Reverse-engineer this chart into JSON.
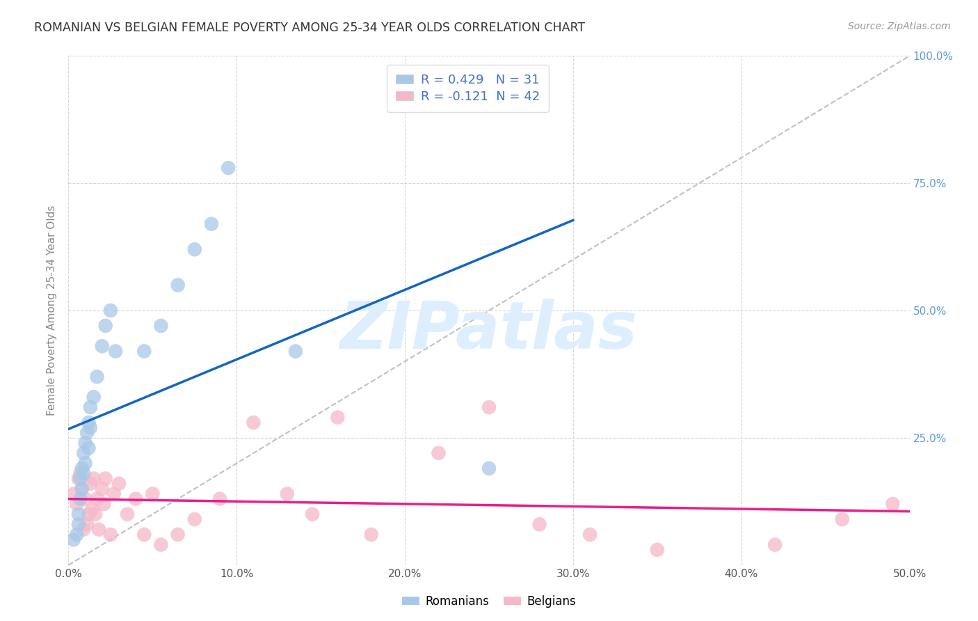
{
  "title": "ROMANIAN VS BELGIAN FEMALE POVERTY AMONG 25-34 YEAR OLDS CORRELATION CHART",
  "source": "Source: ZipAtlas.com",
  "ylabel": "Female Poverty Among 25-34 Year Olds",
  "xlim": [
    0,
    0.5
  ],
  "ylim": [
    0,
    1.0
  ],
  "xtick_vals": [
    0.0,
    0.1,
    0.2,
    0.3,
    0.4,
    0.5
  ],
  "xtick_labels": [
    "0.0%",
    "10.0%",
    "20.0%",
    "30.0%",
    "40.0%",
    "50.0%"
  ],
  "ytick_vals": [
    0.0,
    0.25,
    0.5,
    0.75,
    1.0
  ],
  "ytick_labels_right": [
    "",
    "25.0%",
    "50.0%",
    "75.0%",
    "100.0%"
  ],
  "legend_line1": "R = 0.429   N = 31",
  "legend_line2": "R = -0.121  N = 42",
  "romanian_color": "#a8c8e8",
  "belgian_color": "#f5b8c8",
  "romanian_line_color": "#1565C0",
  "belgian_line_color": "#E91E8C",
  "diagonal_color": "#c0c0c0",
  "watermark_text": "ZIPatlas",
  "watermark_color": "#ddeeff",
  "background_color": "#ffffff",
  "grid_color": "#cccccc",
  "title_color": "#333333",
  "source_color": "#999999",
  "right_axis_color": "#5b9bd5",
  "legend_text_color": "#4472c4",
  "ylabel_color": "#888888",
  "romanian_x": [
    0.003,
    0.005,
    0.006,
    0.006,
    0.007,
    0.007,
    0.008,
    0.008,
    0.009,
    0.009,
    0.01,
    0.01,
    0.011,
    0.012,
    0.012,
    0.013,
    0.013,
    0.015,
    0.017,
    0.02,
    0.022,
    0.025,
    0.028,
    0.045,
    0.055,
    0.065,
    0.075,
    0.085,
    0.095,
    0.135,
    0.25
  ],
  "romanian_y": [
    0.05,
    0.06,
    0.08,
    0.1,
    0.13,
    0.17,
    0.15,
    0.19,
    0.18,
    0.22,
    0.2,
    0.24,
    0.26,
    0.23,
    0.28,
    0.27,
    0.31,
    0.33,
    0.37,
    0.43,
    0.47,
    0.5,
    0.42,
    0.42,
    0.47,
    0.55,
    0.62,
    0.67,
    0.78,
    0.42,
    0.19
  ],
  "belgian_x": [
    0.003,
    0.005,
    0.006,
    0.007,
    0.008,
    0.009,
    0.01,
    0.011,
    0.012,
    0.013,
    0.014,
    0.015,
    0.016,
    0.017,
    0.018,
    0.02,
    0.021,
    0.022,
    0.025,
    0.027,
    0.03,
    0.035,
    0.04,
    0.045,
    0.05,
    0.055,
    0.065,
    0.075,
    0.09,
    0.11,
    0.13,
    0.145,
    0.16,
    0.18,
    0.22,
    0.25,
    0.28,
    0.31,
    0.35,
    0.42,
    0.46,
    0.49
  ],
  "belgian_y": [
    0.14,
    0.12,
    0.17,
    0.18,
    0.15,
    0.07,
    0.13,
    0.08,
    0.1,
    0.16,
    0.11,
    0.17,
    0.1,
    0.13,
    0.07,
    0.15,
    0.12,
    0.17,
    0.06,
    0.14,
    0.16,
    0.1,
    0.13,
    0.06,
    0.14,
    0.04,
    0.06,
    0.09,
    0.13,
    0.28,
    0.14,
    0.1,
    0.29,
    0.06,
    0.22,
    0.31,
    0.08,
    0.06,
    0.03,
    0.04,
    0.09,
    0.12
  ],
  "rom_line_x0": 0.0,
  "rom_line_x1": 0.3,
  "bel_line_x0": 0.0,
  "bel_line_x1": 0.5
}
